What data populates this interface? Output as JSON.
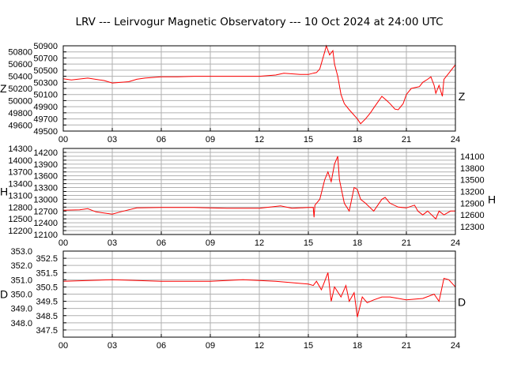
{
  "title": "LRV --- Leirvogur Magnetic Observatory --- 10 Oct 2024 at 24:00 UTC",
  "chart_data": [
    {
      "type": "line",
      "component": "Z",
      "left_label": "Z",
      "right_label": "Z",
      "xlim": [
        0,
        24
      ],
      "xticks": [
        "00",
        "03",
        "06",
        "09",
        "12",
        "15",
        "18",
        "21",
        "24"
      ],
      "ylim": [
        49500,
        50900
      ],
      "yticks": [
        49500,
        49600,
        49700,
        49800,
        49900,
        50000,
        50100,
        50200,
        50300,
        50400,
        50500,
        50600,
        50700,
        50800,
        50900
      ],
      "grid": true,
      "color": "#ff0000",
      "x": [
        0,
        0.5,
        1.5,
        2.5,
        3,
        4,
        4.5,
        5,
        6,
        7,
        8,
        10,
        12,
        13,
        13.5,
        14,
        14.5,
        15,
        15.3,
        15.5,
        15.7,
        16,
        16.1,
        16.3,
        16.5,
        16.6,
        16.8,
        17,
        17.2,
        17.5,
        18,
        18.2,
        18.5,
        18.8,
        19,
        19.5,
        19.8,
        20,
        20.3,
        20.5,
        20.8,
        21,
        21.3,
        21.8,
        22,
        22.3,
        22.5,
        22.7,
        22.8,
        23,
        23.2,
        23.3,
        23.6,
        24
      ],
      "y": [
        50360,
        50340,
        50370,
        50330,
        50290,
        50310,
        50350,
        50370,
        50390,
        50390,
        50400,
        50400,
        50400,
        50420,
        50450,
        50440,
        50430,
        50430,
        50450,
        50460,
        50520,
        50800,
        50900,
        50750,
        50820,
        50600,
        50400,
        50100,
        49950,
        49850,
        49700,
        49620,
        49700,
        49800,
        49880,
        50070,
        50000,
        49950,
        49860,
        49850,
        49950,
        50100,
        50200,
        50230,
        50300,
        50350,
        50390,
        50250,
        50120,
        50250,
        50070,
        50350,
        50450,
        50590
      ]
    },
    {
      "type": "line",
      "component": "H",
      "left_label": "H",
      "right_label": "H",
      "xlim": [
        0,
        24
      ],
      "xticks": [
        "00",
        "03",
        "06",
        "09",
        "12",
        "15",
        "18",
        "21",
        "24"
      ],
      "ylim": [
        12100,
        14300
      ],
      "yticks": [
        12100,
        12200,
        12300,
        12400,
        12500,
        12600,
        12700,
        12800,
        12900,
        13000,
        13100,
        13200,
        13300,
        13400,
        13500,
        13600,
        13700,
        13800,
        13900,
        14000,
        14100,
        14200,
        14300
      ],
      "grid": true,
      "color": "#ff0000",
      "x": [
        0,
        1,
        1.5,
        2,
        3,
        3.5,
        4.5,
        6,
        8,
        10,
        12,
        13.3,
        14,
        15,
        15.3,
        15.35,
        15.4,
        15.7,
        16,
        16.2,
        16.4,
        16.6,
        16.8,
        16.9,
        17.2,
        17.5,
        17.8,
        18,
        18.2,
        18.5,
        19,
        19.5,
        19.7,
        20,
        20.5,
        21,
        21.5,
        21.7,
        22,
        22.3,
        22.8,
        23,
        23.3,
        23.7,
        24
      ],
      "y": [
        12720,
        12730,
        12760,
        12680,
        12620,
        12680,
        12780,
        12790,
        12790,
        12770,
        12770,
        12830,
        12770,
        12790,
        12790,
        12540,
        12850,
        13000,
        13500,
        13700,
        13450,
        13900,
        14100,
        13500,
        12900,
        12700,
        13300,
        13250,
        13000,
        12900,
        12700,
        13000,
        13050,
        12900,
        12800,
        12780,
        12850,
        12700,
        12600,
        12700,
        12500,
        12700,
        12600,
        12700,
        12700
      ]
    },
    {
      "type": "line",
      "component": "D",
      "left_label": "D",
      "right_label": "D",
      "xlim": [
        0,
        24
      ],
      "xticks": [
        "00",
        "03",
        "06",
        "09",
        "12",
        "15",
        "18",
        "21",
        "24"
      ],
      "ylim": [
        347.0,
        353.0
      ],
      "yticks": [
        "347.5",
        "348.0",
        "348.5",
        "349.0",
        "349.5",
        "350.0",
        "350.5",
        "351.0",
        "351.5",
        "352.0",
        "352.5",
        "353.0"
      ],
      "grid": true,
      "color": "#ff0000",
      "x": [
        0,
        3,
        6,
        9,
        11,
        13,
        14,
        15,
        15.3,
        15.5,
        15.8,
        16,
        16.2,
        16.4,
        16.6,
        17,
        17.3,
        17.5,
        17.8,
        18,
        18.3,
        18.6,
        19,
        19.5,
        20,
        21,
        22,
        22.7,
        23,
        23.3,
        23.6,
        24
      ],
      "y": [
        350.9,
        351.0,
        350.9,
        350.9,
        351.0,
        350.9,
        350.8,
        350.7,
        350.6,
        350.9,
        350.3,
        350.9,
        351.5,
        349.5,
        350.5,
        349.8,
        350.6,
        349.5,
        350.1,
        348.4,
        349.8,
        349.4,
        349.6,
        349.8,
        349.8,
        349.6,
        349.7,
        350.0,
        349.5,
        351.1,
        351.0,
        350.5
      ]
    }
  ]
}
